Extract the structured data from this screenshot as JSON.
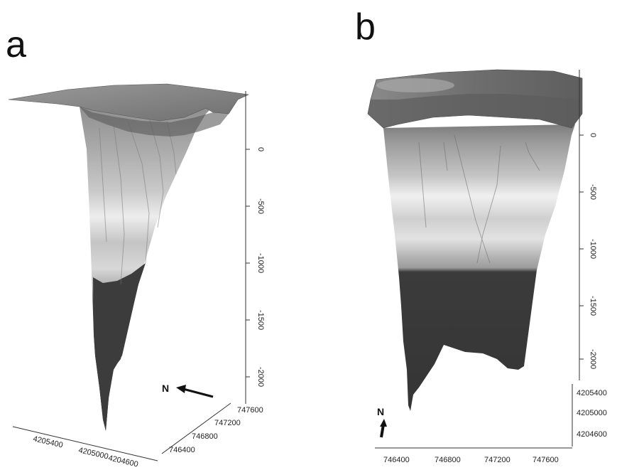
{
  "panels": [
    {
      "id": "a",
      "label": "a",
      "north_label": "N",
      "z_ticks": [
        "0",
        "-500",
        "-1000",
        "-1500",
        "-2000"
      ],
      "y_ticks": [
        "747600",
        "747200",
        "746800",
        "746400"
      ],
      "x_ticks": [
        "4205400",
        "4205000",
        "4204600"
      ]
    },
    {
      "id": "b",
      "label": "b",
      "north_label": "N",
      "z_ticks": [
        "0",
        "-500",
        "-1000",
        "-1500",
        "-2000"
      ],
      "y_ticks": [
        "4205400",
        "4205000",
        "4204600"
      ],
      "x_ticks": [
        "746400",
        "746800",
        "747200",
        "747600"
      ]
    }
  ],
  "colors": {
    "surface_top": "#8e8e8e",
    "surface_light": "#e9e9e9",
    "surface_dark": "#3a3a3a",
    "axis": "#333333"
  }
}
